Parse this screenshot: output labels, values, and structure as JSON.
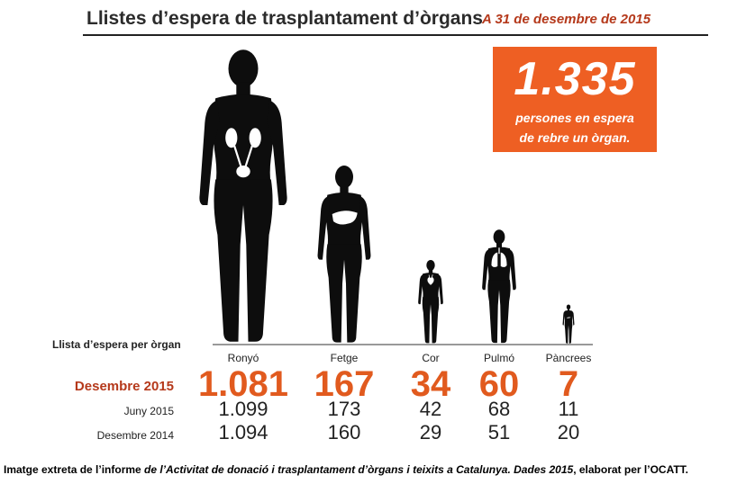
{
  "title": "Llistes d’espera de trasplantament d’òrgans",
  "subtitle": "A 31 de desembre de 2015",
  "callout": {
    "number": "1.335",
    "line1": "persones en espera",
    "line2": "de rebre un òrgan."
  },
  "colors": {
    "accent": "#ee5f23",
    "highlight_text": "#e15a1e",
    "subtitle": "#b5391b",
    "silhouette": "#0d0d0d",
    "organ": "#ffffff"
  },
  "chart_data": {
    "type": "table",
    "row_header": "Llista d’espera per òrgan",
    "categories": [
      "Ronyó",
      "Fetge",
      "Cor",
      "Pulmó",
      "Pàncrees"
    ],
    "organ_icons": [
      "kidney-icon",
      "liver-icon",
      "heart-icon",
      "lungs-icon",
      "pancreas-icon"
    ],
    "series": [
      {
        "name": "Desembre 2015",
        "display": [
          "1.081",
          "167",
          "34",
          "60",
          "7"
        ],
        "values": [
          1081,
          167,
          34,
          60,
          7
        ]
      },
      {
        "name": "Juny 2015",
        "display": [
          "1.099",
          "173",
          "42",
          "68",
          "11"
        ],
        "values": [
          1099,
          173,
          42,
          68,
          11
        ]
      },
      {
        "name": "Desembre 2014",
        "display": [
          "1.094",
          "160",
          "29",
          "51",
          "20"
        ],
        "values": [
          1094,
          160,
          29,
          51,
          20
        ]
      }
    ]
  },
  "caption": {
    "part1": "Imatge extreta de l’informe ",
    "italic1": "de l’Activitat de donació i trasplantament d’òrgans i teixits a Catalunya. Dades 2015",
    "part2": ", elaborat per l’OCATT."
  }
}
